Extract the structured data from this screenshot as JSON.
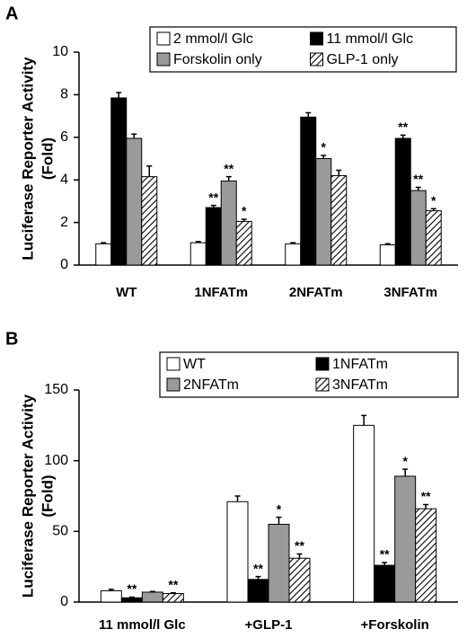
{
  "chart_data": [
    {
      "type": "bar",
      "panel": "A",
      "ylabel": [
        "Luciferase Reporter Activity",
        "(Fold)"
      ],
      "categories": [
        "WT",
        "1NFATm",
        "2NFATm",
        "3NFATm"
      ],
      "ylim": [
        0,
        10
      ],
      "yticks": [
        0,
        2,
        4,
        6,
        8,
        10
      ],
      "legend": "top-right",
      "series": [
        {
          "name": "2 mmol/l Glc",
          "color": "#ffffff",
          "values": [
            1.0,
            1.05,
            1.0,
            0.95
          ],
          "errors": [
            0.05,
            0.05,
            0.05,
            0.05
          ],
          "annotations": [
            null,
            null,
            null,
            null
          ]
        },
        {
          "name": "11 mmol/l Glc",
          "color": "#000000",
          "values": [
            7.85,
            2.7,
            6.95,
            5.95
          ],
          "errors": [
            0.25,
            0.1,
            0.2,
            0.15
          ],
          "annotations": [
            null,
            "**",
            null,
            "**"
          ]
        },
        {
          "name": "Forskolin only",
          "color": "#9a9a9a",
          "values": [
            5.95,
            3.95,
            5.0,
            3.5
          ],
          "errors": [
            0.2,
            0.2,
            0.15,
            0.15
          ],
          "annotations": [
            null,
            "**",
            "*",
            "**"
          ]
        },
        {
          "name": "GLP-1 only",
          "color": "#ffffff",
          "hatch": true,
          "values": [
            4.15,
            2.05,
            4.2,
            2.55
          ],
          "errors": [
            0.5,
            0.1,
            0.25,
            0.1
          ],
          "annotations": [
            null,
            "*",
            null,
            "*"
          ]
        }
      ]
    },
    {
      "type": "bar",
      "panel": "B",
      "ylabel": [
        "Luciferase Reporter Activity",
        "(Fold)"
      ],
      "categories": [
        "11 mmol/l Glc",
        "+GLP-1",
        "+Forskolin"
      ],
      "ylim": [
        0,
        150
      ],
      "yticks": [
        0,
        50,
        100,
        150
      ],
      "legend": "top-right",
      "series": [
        {
          "name": "WT",
          "color": "#ffffff",
          "values": [
            8,
            71,
            125
          ],
          "errors": [
            1,
            4,
            7
          ],
          "annotations": [
            null,
            null,
            null
          ]
        },
        {
          "name": "1NFATm",
          "color": "#000000",
          "values": [
            3,
            16,
            26
          ],
          "errors": [
            0.5,
            2,
            2
          ],
          "annotations": [
            "**",
            "**",
            "**"
          ]
        },
        {
          "name": "2NFATm",
          "color": "#9a9a9a",
          "values": [
            7,
            55,
            89
          ],
          "errors": [
            0.5,
            5,
            5
          ],
          "annotations": [
            null,
            "*",
            "*"
          ]
        },
        {
          "name": "3NFATm",
          "color": "#ffffff",
          "hatch": true,
          "values": [
            6,
            31,
            66
          ],
          "errors": [
            0.5,
            3,
            3
          ],
          "annotations": [
            "**",
            "**",
            "**"
          ]
        }
      ]
    }
  ]
}
